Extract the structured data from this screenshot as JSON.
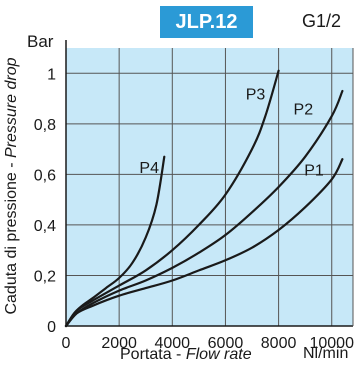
{
  "chart_data": {
    "type": "line",
    "badge": "JLP.12",
    "thread_size": "G1/2",
    "y_unit": "Bar",
    "x_unit": "Nl/min",
    "ylabel_main": "Caduta di pressione - ",
    "ylabel_italic": "Pressure drop",
    "xlabel_main": "Portata - ",
    "xlabel_italic": "Flow rate",
    "xlim": [
      0,
      10800
    ],
    "ylim": [
      0,
      1.1
    ],
    "x_ticks": [
      0,
      2000,
      4000,
      6000,
      8000,
      10000
    ],
    "x_tick_labels": [
      "0",
      "2000",
      "4000",
      "6000",
      "8000",
      "10000"
    ],
    "y_ticks": [
      0,
      0.2,
      0.4,
      0.6,
      0.8,
      1.0
    ],
    "y_tick_labels": [
      "0",
      "0,2",
      "0,4",
      "0,6",
      "0,8",
      "1"
    ],
    "grid": true,
    "colors": {
      "plot_background": "#c7e8f8",
      "grid": "#555555",
      "line": "#1a1a1a",
      "badge": "#2b9ad6"
    },
    "series": [
      {
        "name": "P4",
        "label_at": [
          3500,
          0.63
        ],
        "x": [
          0,
          300,
          600,
          1000,
          1500,
          2000,
          2500,
          3000,
          3400,
          3700
        ],
        "y": [
          0,
          0.05,
          0.08,
          0.11,
          0.15,
          0.19,
          0.25,
          0.35,
          0.48,
          0.67
        ]
      },
      {
        "name": "P3",
        "label_at": [
          7500,
          0.92
        ],
        "x": [
          0,
          400,
          1000,
          2000,
          3000,
          4000,
          5000,
          6000,
          7000,
          7500,
          8000
        ],
        "y": [
          0,
          0.06,
          0.1,
          0.16,
          0.22,
          0.3,
          0.4,
          0.52,
          0.7,
          0.83,
          1.01
        ]
      },
      {
        "name": "P2",
        "label_at": [
          9300,
          0.86
        ],
        "x": [
          0,
          400,
          1000,
          2000,
          3000,
          4000,
          5000,
          6000,
          7000,
          8000,
          9000,
          10000,
          10400
        ],
        "y": [
          0,
          0.05,
          0.09,
          0.14,
          0.18,
          0.23,
          0.29,
          0.36,
          0.45,
          0.55,
          0.67,
          0.83,
          0.93
        ]
      },
      {
        "name": "P1",
        "label_at": [
          9700,
          0.62
        ],
        "x": [
          0,
          400,
          1000,
          2000,
          3000,
          4000,
          5000,
          6000,
          7000,
          8000,
          9000,
          10000,
          10400
        ],
        "y": [
          0,
          0.05,
          0.08,
          0.12,
          0.15,
          0.18,
          0.22,
          0.26,
          0.31,
          0.38,
          0.47,
          0.58,
          0.66
        ]
      }
    ]
  }
}
